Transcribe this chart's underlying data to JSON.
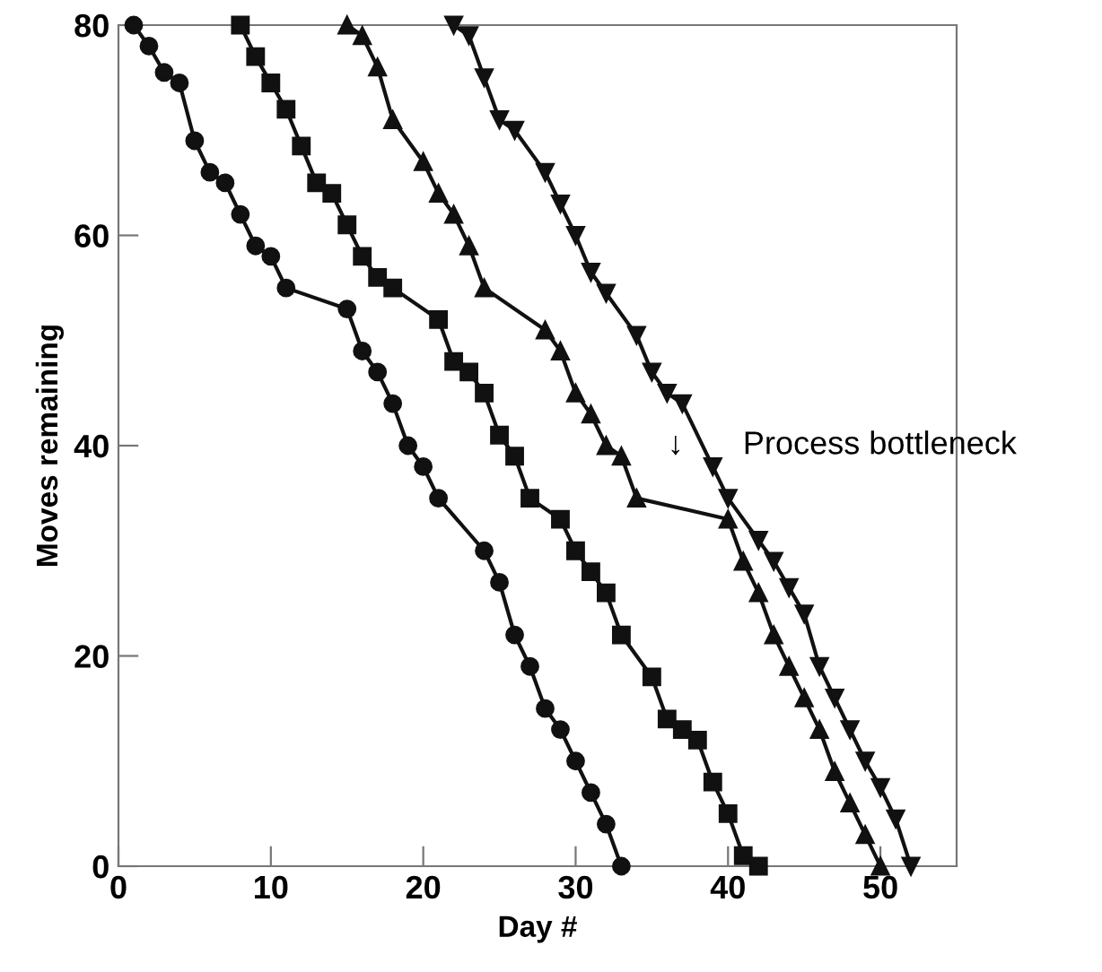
{
  "chart_data": {
    "type": "line",
    "xlabel": "Day #",
    "ylabel": "Moves remaining",
    "xlim": [
      0,
      55
    ],
    "ylim": [
      0,
      80
    ],
    "xticks": [
      0,
      10,
      20,
      30,
      40,
      50
    ],
    "yticks": [
      0,
      20,
      40,
      60,
      80
    ],
    "grid": false,
    "legend": false,
    "line_style": "solid",
    "series": [
      {
        "color": "#111111",
        "marker": "circle",
        "x": [
          1,
          2,
          3,
          4,
          5,
          6,
          7,
          8,
          9,
          10,
          11,
          15,
          16,
          17,
          18,
          19,
          20,
          21,
          24,
          25,
          26,
          27,
          28,
          29,
          30,
          31,
          32,
          33
        ],
        "values": [
          80,
          78,
          75.5,
          74.5,
          69,
          66,
          65,
          62,
          59,
          58,
          55,
          53,
          49,
          47,
          44,
          40,
          38,
          35,
          30,
          27,
          22,
          19,
          15,
          13,
          10,
          7,
          4,
          0
        ]
      },
      {
        "color": "#111111",
        "marker": "square",
        "x": [
          8,
          9,
          10,
          11,
          12,
          13,
          14,
          15,
          16,
          17,
          18,
          21,
          22,
          23,
          24,
          25,
          26,
          27,
          29,
          30,
          31,
          32,
          33,
          35,
          36,
          37,
          38,
          39,
          40,
          41,
          42
        ],
        "values": [
          80,
          77,
          74.5,
          72,
          68.5,
          65,
          64,
          61,
          58,
          56,
          55,
          52,
          48,
          47,
          45,
          41,
          39,
          35,
          33,
          30,
          28,
          26,
          22,
          18,
          14,
          13,
          12,
          8,
          5,
          1,
          0
        ]
      },
      {
        "color": "#111111",
        "marker": "triangle",
        "x": [
          15,
          16,
          17,
          18,
          20,
          21,
          22,
          23,
          24,
          28,
          29,
          30,
          31,
          32,
          33,
          34,
          40,
          41,
          42,
          43,
          44,
          45,
          46,
          47,
          48,
          49,
          50
        ],
        "values": [
          80,
          79,
          76,
          71,
          67,
          64,
          62,
          59,
          55,
          51,
          49,
          45,
          43,
          40,
          39,
          35,
          33,
          29,
          26,
          22,
          19,
          16,
          13,
          9,
          6,
          3,
          0
        ]
      },
      {
        "color": "#111111",
        "marker": "triangle_down",
        "x": [
          22,
          23,
          24,
          25,
          26,
          28,
          29,
          30,
          31,
          32,
          34,
          35,
          36,
          37,
          39,
          40,
          42,
          43,
          44,
          45,
          46,
          47,
          48,
          49,
          50,
          51,
          52
        ],
        "values": [
          80,
          79,
          75,
          71,
          70,
          66,
          63,
          60,
          56.5,
          54.5,
          50.5,
          47,
          45,
          44,
          38,
          35,
          31,
          29,
          26.5,
          24,
          19,
          16,
          13,
          10,
          7.5,
          4.5,
          0
        ]
      }
    ],
    "annotations": [
      "↓",
      "Process bottleneck"
    ]
  }
}
